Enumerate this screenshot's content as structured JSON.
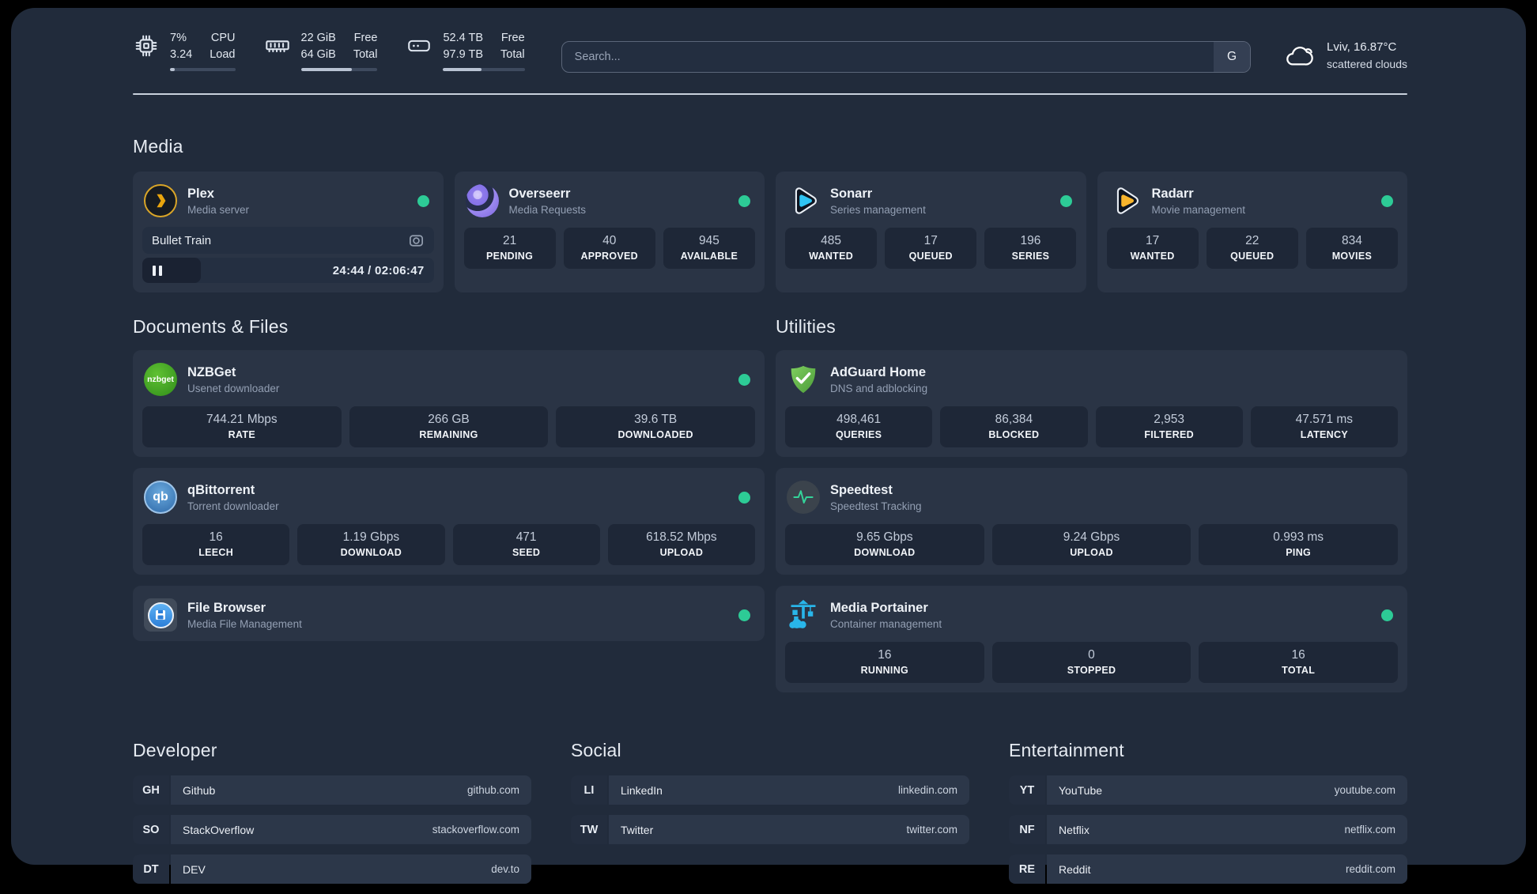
{
  "colors": {
    "status_online": "#2dcb96",
    "portainer_blue": "#29b6ea",
    "adguard_green": "#5fb64a"
  },
  "header": {
    "cpu": {
      "value_top": "7%",
      "value_bottom": "3.24",
      "label_top": "CPU",
      "label_bottom": "Load",
      "progress": 7
    },
    "memory": {
      "value_top": "22 GiB",
      "value_bottom": "64 GiB",
      "label_top": "Free",
      "label_bottom": "Total",
      "progress": 66
    },
    "disk": {
      "value_top": "52.4 TB",
      "value_bottom": "97.9 TB",
      "label_top": "Free",
      "label_bottom": "Total",
      "progress": 47
    },
    "search": {
      "placeholder": "Search...",
      "provider_badge": "G"
    },
    "weather": {
      "location": "Lviv, 16.87°C",
      "condition": "scattered clouds"
    }
  },
  "media": {
    "title": "Media",
    "plex": {
      "name": "Plex",
      "description": "Media server",
      "now_playing_title": "Bullet Train",
      "time_display": "24:44 / 02:06:47",
      "progress": 20
    },
    "overseerr": {
      "name": "Overseerr",
      "description": "Media Requests",
      "stats": [
        {
          "value": "21",
          "label": "PENDING"
        },
        {
          "value": "40",
          "label": "APPROVED"
        },
        {
          "value": "945",
          "label": "AVAILABLE"
        }
      ]
    },
    "sonarr": {
      "name": "Sonarr",
      "description": "Series management",
      "stats": [
        {
          "value": "485",
          "label": "WANTED"
        },
        {
          "value": "17",
          "label": "QUEUED"
        },
        {
          "value": "196",
          "label": "SERIES"
        }
      ]
    },
    "radarr": {
      "name": "Radarr",
      "description": "Movie management",
      "stats": [
        {
          "value": "17",
          "label": "WANTED"
        },
        {
          "value": "22",
          "label": "QUEUED"
        },
        {
          "value": "834",
          "label": "MOVIES"
        }
      ]
    }
  },
  "documents": {
    "title": "Documents & Files",
    "nzbget": {
      "name": "NZBGet",
      "description": "Usenet downloader",
      "logo_text": "nzbget",
      "stats": [
        {
          "value": "744.21 Mbps",
          "label": "RATE"
        },
        {
          "value": "266 GB",
          "label": "REMAINING"
        },
        {
          "value": "39.6 TB",
          "label": "DOWNLOADED"
        }
      ]
    },
    "qbittorrent": {
      "name": "qBittorrent",
      "description": "Torrent downloader",
      "logo_text": "qb",
      "stats": [
        {
          "value": "16",
          "label": "LEECH"
        },
        {
          "value": "1.19 Gbps",
          "label": "DOWNLOAD"
        },
        {
          "value": "471",
          "label": "SEED"
        },
        {
          "value": "618.52 Mbps",
          "label": "UPLOAD"
        }
      ]
    },
    "filebrowser": {
      "name": "File Browser",
      "description": "Media File Management"
    }
  },
  "utilities": {
    "title": "Utilities",
    "adguard": {
      "name": "AdGuard Home",
      "description": "DNS and adblocking",
      "stats": [
        {
          "value": "498,461",
          "label": "QUERIES"
        },
        {
          "value": "86,384",
          "label": "BLOCKED"
        },
        {
          "value": "2,953",
          "label": "FILTERED"
        },
        {
          "value": "47.571 ms",
          "label": "LATENCY"
        }
      ]
    },
    "speedtest": {
      "name": "Speedtest",
      "description": "Speedtest Tracking",
      "stats": [
        {
          "value": "9.65 Gbps",
          "label": "DOWNLOAD"
        },
        {
          "value": "9.24 Gbps",
          "label": "UPLOAD"
        },
        {
          "value": "0.993 ms",
          "label": "PING"
        }
      ]
    },
    "portainer": {
      "name": "Media Portainer",
      "description": "Container management",
      "stats": [
        {
          "value": "16",
          "label": "RUNNING"
        },
        {
          "value": "0",
          "label": "STOPPED"
        },
        {
          "value": "16",
          "label": "TOTAL"
        }
      ]
    }
  },
  "bookmarks": {
    "developer": {
      "title": "Developer",
      "items": [
        {
          "abbr": "GH",
          "name": "Github",
          "url": "github.com"
        },
        {
          "abbr": "SO",
          "name": "StackOverflow",
          "url": "stackoverflow.com"
        },
        {
          "abbr": "DT",
          "name": "DEV",
          "url": "dev.to"
        }
      ]
    },
    "social": {
      "title": "Social",
      "items": [
        {
          "abbr": "LI",
          "name": "LinkedIn",
          "url": "linkedin.com"
        },
        {
          "abbr": "TW",
          "name": "Twitter",
          "url": "twitter.com"
        }
      ]
    },
    "entertainment": {
      "title": "Entertainment",
      "items": [
        {
          "abbr": "YT",
          "name": "YouTube",
          "url": "youtube.com"
        },
        {
          "abbr": "NF",
          "name": "Netflix",
          "url": "netflix.com"
        },
        {
          "abbr": "RE",
          "name": "Reddit",
          "url": "reddit.com"
        }
      ]
    }
  }
}
